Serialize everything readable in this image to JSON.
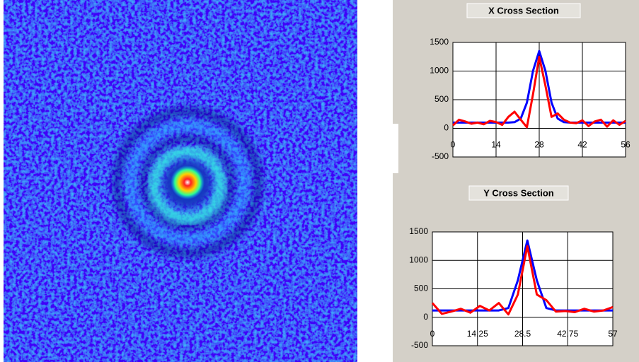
{
  "chart_data": [
    {
      "type": "line",
      "title": "X Cross Section",
      "x": [
        0,
        2,
        4,
        6,
        8,
        10,
        12,
        14,
        16,
        18,
        20,
        22,
        24,
        26,
        28,
        30,
        32,
        34,
        36,
        38,
        40,
        42,
        44,
        46,
        48,
        50,
        52,
        54,
        56
      ],
      "series": [
        {
          "color": "#0000ff",
          "values": [
            100,
            100,
            100,
            100,
            100,
            100,
            100,
            100,
            100,
            100,
            108,
            170,
            448,
            1008,
            1350,
            1008,
            448,
            170,
            108,
            100,
            100,
            100,
            100,
            100,
            100,
            100,
            100,
            100,
            100
          ]
        },
        {
          "color": "#ff0000",
          "values": [
            50,
            150,
            120,
            80,
            100,
            70,
            130,
            110,
            60,
            200,
            290,
            150,
            20,
            600,
            1250,
            750,
            200,
            260,
            150,
            100,
            90,
            140,
            40,
            120,
            150,
            30,
            140,
            60,
            130
          ]
        }
      ],
      "xlim": [
        0,
        56
      ],
      "xticks": [
        0,
        14,
        28,
        42,
        56
      ],
      "ylim": [
        -500,
        1500
      ],
      "yticks": [
        -500,
        0,
        500,
        1000,
        1500
      ],
      "grid": true
    },
    {
      "type": "line",
      "title": "Y Cross Section",
      "x": [
        0,
        3,
        6,
        9,
        12,
        15,
        18,
        21,
        24,
        27,
        30,
        33,
        36,
        39,
        42,
        45,
        48,
        51,
        54,
        57
      ],
      "series": [
        {
          "color": "#0000ff",
          "values": [
            120,
            120,
            120,
            120,
            120,
            120,
            120,
            120,
            162,
            649,
            1350,
            649,
            162,
            120,
            120,
            120,
            120,
            120,
            120,
            120
          ]
        },
        {
          "color": "#ff0000",
          "values": [
            250,
            60,
            100,
            150,
            80,
            200,
            120,
            250,
            50,
            400,
            1250,
            400,
            300,
            100,
            110,
            90,
            150,
            100,
            120,
            180
          ]
        }
      ],
      "xlim": [
        0,
        57
      ],
      "xticks": [
        0,
        14.25,
        28.5,
        42.75,
        57
      ],
      "ylim": [
        -500,
        1500
      ],
      "yticks": [
        -500,
        0,
        500,
        1000,
        1500
      ],
      "grid": true
    }
  ]
}
